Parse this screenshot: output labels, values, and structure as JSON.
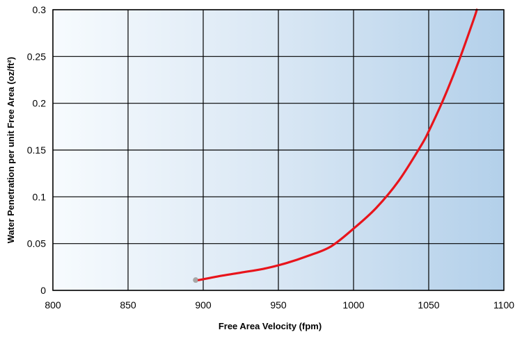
{
  "chart_data": {
    "type": "line",
    "title": "",
    "xlabel": "Free Area Velocity (fpm)",
    "ylabel": "Water Penetration per unit Free Area (oz/ft²)",
    "xlim": [
      800,
      1100
    ],
    "ylim": [
      0,
      0.3
    ],
    "x_ticks": [
      800,
      850,
      900,
      950,
      1000,
      1050,
      1100
    ],
    "y_ticks": [
      0,
      0.05,
      0.1,
      0.15,
      0.2,
      0.25,
      0.3
    ],
    "x_tick_labels": [
      "800",
      "850",
      "900",
      "950",
      "1000",
      "1050",
      "1100"
    ],
    "y_tick_labels": [
      "0",
      "0.05",
      "0.1",
      "0.15",
      "0.2",
      "0.25",
      "0.3"
    ],
    "grid": true,
    "legend": "none",
    "background": "gradient white to light blue",
    "series": [
      {
        "color": "#e8141b",
        "x": [
          897,
          910,
          925,
          940,
          955,
          970,
          985,
          1000,
          1015,
          1030,
          1045,
          1050,
          1060,
          1070,
          1080,
          1082
        ],
        "y": [
          0.011,
          0.015,
          0.019,
          0.023,
          0.029,
          0.037,
          0.047,
          0.066,
          0.088,
          0.117,
          0.155,
          0.17,
          0.205,
          0.245,
          0.29,
          0.3
        ]
      }
    ],
    "start_marker": {
      "x": 895,
      "y": 0.011,
      "color": "#a6a6a6"
    }
  }
}
